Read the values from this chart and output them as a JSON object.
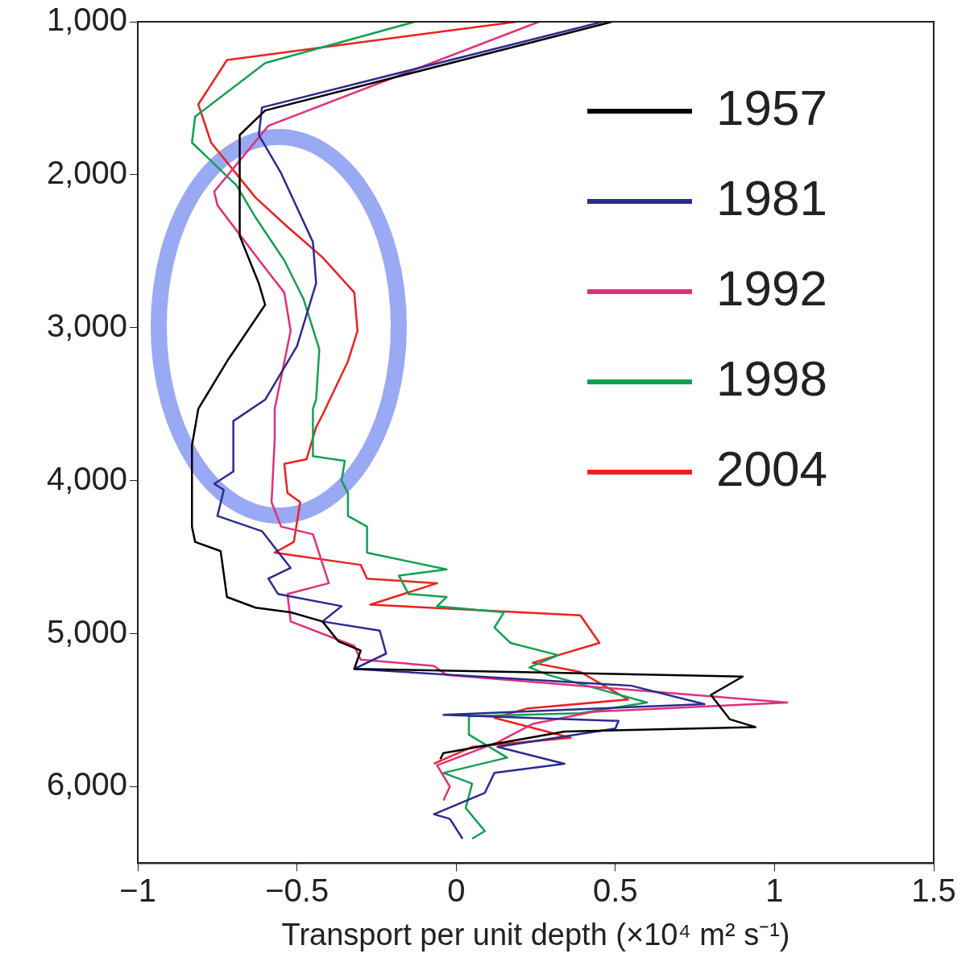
{
  "chart_data": {
    "type": "line",
    "xlabel": "Transport per unit depth (×10⁴ m² s⁻¹)",
    "xlim": [
      -1,
      1.5
    ],
    "xticks": [
      {
        "value": -1,
        "label": "−1"
      },
      {
        "value": -0.5,
        "label": "−0.5"
      },
      0,
      0.5,
      1,
      1.5
    ],
    "ylim": [
      6500,
      1000
    ],
    "yticks": [
      {
        "value": 1000,
        "label": "1,000"
      },
      {
        "value": 2000,
        "label": "2,000"
      },
      {
        "value": 3000,
        "label": "3,000"
      },
      {
        "value": 4000,
        "label": "4,000"
      },
      {
        "value": 5000,
        "label": "5,000"
      },
      {
        "value": 6000,
        "label": "6,000"
      }
    ],
    "grid": false,
    "legend": "top right",
    "marker": "none",
    "line_style": "solid",
    "series": [
      {
        "name": "1957",
        "color": "#000000",
        "x": [
          0.49,
          -0.6,
          -0.68,
          -0.68,
          -0.62,
          -0.6,
          -0.72,
          -0.81,
          -0.83,
          -0.83,
          -0.82,
          -0.74,
          -0.72,
          -0.63,
          -0.52,
          -0.42,
          -0.37,
          -0.3,
          -0.32,
          0.9,
          0.8,
          0.86,
          0.94,
          0.34,
          -0.04,
          -0.05
        ],
        "values": [
          1000,
          1580,
          1740,
          2400,
          2710,
          2850,
          3220,
          3530,
          3770,
          4300,
          4400,
          4460,
          4760,
          4830,
          4860,
          4920,
          5050,
          5110,
          5230,
          5280,
          5400,
          5560,
          5610,
          5640,
          5780,
          5820
        ]
      },
      {
        "name": "1981",
        "color": "#2b2b8f",
        "x": [
          0.46,
          -0.61,
          -0.62,
          -0.55,
          -0.45,
          -0.44,
          -0.5,
          -0.6,
          -0.7,
          -0.7,
          -0.76,
          -0.73,
          -0.75,
          -0.61,
          -0.52,
          -0.59,
          -0.56,
          -0.36,
          -0.42,
          -0.24,
          -0.22,
          -0.32,
          0.55,
          0.78,
          -0.04,
          0.51,
          0.5,
          0.13,
          0.34,
          0.12,
          0.09,
          -0.07,
          -0.02,
          0.02
        ],
        "values": [
          1000,
          1560,
          1740,
          1990,
          2440,
          2710,
          3120,
          3470,
          3610,
          3940,
          4020,
          4060,
          4230,
          4330,
          4570,
          4640,
          4740,
          4820,
          4920,
          4980,
          5130,
          5230,
          5340,
          5460,
          5530,
          5570,
          5620,
          5740,
          5850,
          5910,
          6040,
          6180,
          6210,
          6340
        ]
      },
      {
        "name": "1992",
        "color": "#e0307a",
        "x": [
          0.26,
          -0.59,
          -0.76,
          -0.75,
          -0.6,
          -0.54,
          -0.52,
          -0.57,
          -0.57,
          -0.58,
          -0.55,
          -0.45,
          -0.4,
          -0.53,
          -0.52,
          -0.32,
          -0.3,
          -0.07,
          -0.03,
          1.04,
          0.43,
          0.24,
          0.13,
          -0.06,
          -0.02,
          -0.04
        ],
        "values": [
          1000,
          1680,
          2110,
          2200,
          2610,
          2770,
          3020,
          3530,
          3730,
          4140,
          4300,
          4350,
          4670,
          4740,
          4920,
          5080,
          5170,
          5210,
          5270,
          5450,
          5510,
          5590,
          5710,
          5860,
          6000,
          6090
        ]
      },
      {
        "name": "1998",
        "color": "#12a050",
        "x": [
          -0.13,
          -0.6,
          -0.82,
          -0.83,
          -0.69,
          -0.63,
          -0.54,
          -0.48,
          -0.43,
          -0.44,
          -0.45,
          -0.45,
          -0.35,
          -0.36,
          -0.34,
          -0.34,
          -0.28,
          -0.28,
          -0.03,
          -0.18,
          -0.15,
          -0.03,
          -0.06,
          0.15,
          0.12,
          0.17,
          0.32,
          0.23,
          0.29,
          0.6,
          0.39,
          0.04,
          0.04,
          0.16,
          -0.04,
          0.05,
          0.03,
          0.09,
          0.05
        ],
        "values": [
          1000,
          1270,
          1620,
          1790,
          2070,
          2280,
          2560,
          2810,
          3140,
          3470,
          3530,
          3840,
          3870,
          4000,
          4080,
          4230,
          4300,
          4470,
          4580,
          4620,
          4740,
          4760,
          4820,
          4860,
          4960,
          5060,
          5140,
          5220,
          5270,
          5450,
          5520,
          5540,
          5660,
          5810,
          5910,
          5980,
          6140,
          6290,
          6340
        ]
      },
      {
        "name": "2004",
        "color": "#ee2020",
        "x": [
          0.19,
          -0.72,
          -0.81,
          -0.77,
          -0.63,
          -0.53,
          -0.42,
          -0.32,
          -0.31,
          -0.34,
          -0.42,
          -0.44,
          -0.47,
          -0.54,
          -0.53,
          -0.49,
          -0.51,
          -0.57,
          -0.3,
          -0.28,
          -0.06,
          -0.27,
          0.39,
          0.45,
          0.24,
          0.39,
          0.54,
          0.22,
          0.12,
          0.36,
          0.05,
          -0.07
        ],
        "values": [
          1000,
          1250,
          1540,
          1790,
          2150,
          2340,
          2540,
          2770,
          3020,
          3220,
          3570,
          3650,
          3860,
          3890,
          4080,
          4140,
          4400,
          4470,
          4550,
          4640,
          4670,
          4810,
          4880,
          5060,
          5190,
          5250,
          5430,
          5490,
          5550,
          5680,
          5740,
          5850
        ]
      }
    ]
  }
}
